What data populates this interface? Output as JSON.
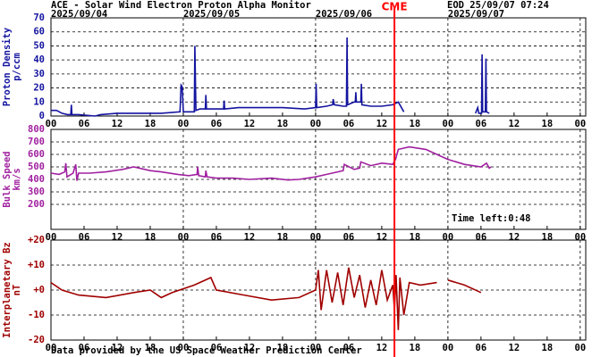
{
  "header": {
    "title": "ACE - Solar Wind Electron Proton Alpha Monitor",
    "eod": "EOD 25/09/07 07:24"
  },
  "footer": "Data provided by the US Space Weather Prediction Center",
  "chart_data": [
    {
      "type": "line",
      "ylabel": [
        "Proton Density",
        "p/ccm"
      ],
      "color": "#1414a0",
      "xlim": [
        0,
        97
      ],
      "ylim": [
        0,
        70
      ],
      "yticks": [
        0,
        10,
        20,
        30,
        40,
        50,
        60,
        70
      ],
      "grid": true,
      "date_ticks": [
        {
          "value": 0,
          "label": "2025/09/04"
        },
        {
          "value": 24,
          "label": "2025/09/05"
        },
        {
          "value": 48,
          "label": "2025/09/06"
        },
        {
          "value": 72,
          "label": "2025/09/07"
        }
      ],
      "annotations": [
        {
          "text": "CME",
          "x": 62.3,
          "color": "#ff0000"
        }
      ],
      "xticks": [
        {
          "value": 0,
          "label": "00"
        },
        {
          "value": 6,
          "label": "06"
        },
        {
          "value": 12,
          "label": "12"
        },
        {
          "value": 18,
          "label": "18"
        },
        {
          "value": 24,
          "label": "00"
        },
        {
          "value": 30,
          "label": "06"
        },
        {
          "value": 36,
          "label": "12"
        },
        {
          "value": 42,
          "label": "18"
        },
        {
          "value": 48,
          "label": "00"
        },
        {
          "value": 54,
          "label": "06"
        },
        {
          "value": 60,
          "label": "12"
        },
        {
          "value": 66,
          "label": "18"
        },
        {
          "value": 72,
          "label": "00"
        },
        {
          "value": 78,
          "label": "06"
        },
        {
          "value": 84,
          "label": "12"
        },
        {
          "value": 90,
          "label": "18"
        },
        {
          "value": 96,
          "label": "00"
        }
      ],
      "x": [
        0,
        1,
        2,
        3,
        3.6,
        3.7,
        3.8,
        5,
        8,
        9,
        12,
        16,
        20,
        23.4,
        23.6,
        23.8,
        24,
        26,
        26.1,
        26.3,
        27,
        28,
        28.1,
        28.2,
        30,
        31.3,
        31.4,
        31.5,
        34,
        38,
        42,
        46,
        48,
        48.1,
        48.2,
        50,
        51.1,
        51.2,
        51.4,
        53,
        53.6,
        53.7,
        53.8,
        55,
        55.2,
        55.3,
        55.4,
        56.2,
        56.3,
        56.4,
        58,
        60,
        62,
        63,
        64,
        66,
        77,
        77.4,
        77.6,
        78.1,
        78.2,
        78.3,
        78.8,
        78.9,
        79,
        79.5
      ],
      "values": [
        4,
        4,
        2,
        1,
        1,
        8,
        1,
        1,
        0,
        1,
        2,
        2,
        2,
        3,
        22,
        21,
        3,
        3,
        50,
        4,
        5,
        5,
        15,
        5,
        5,
        5,
        11,
        5,
        6,
        6,
        6,
        5,
        6,
        23,
        6,
        7,
        8,
        12,
        8,
        7,
        7,
        56,
        8,
        10,
        10,
        17,
        10,
        10,
        23,
        8,
        7,
        7,
        8,
        10,
        3,
        null,
        2,
        6,
        2,
        2,
        44,
        3,
        3,
        41,
        3,
        2
      ]
    },
    {
      "type": "line",
      "ylabel": [
        "Bulk Speed",
        "km/s"
      ],
      "color": "#a020a0",
      "note": "Time left:0:48",
      "xlim": [
        0,
        97
      ],
      "ylim": [
        0,
        800
      ],
      "yticks": [
        200,
        300,
        400,
        500,
        600,
        700,
        800
      ],
      "grid": true,
      "xticks": [
        {
          "value": 0,
          "label": "00"
        },
        {
          "value": 6,
          "label": "06"
        },
        {
          "value": 12,
          "label": "12"
        },
        {
          "value": 18,
          "label": "18"
        },
        {
          "value": 24,
          "label": "00"
        },
        {
          "value": 30,
          "label": "06"
        },
        {
          "value": 36,
          "label": "12"
        },
        {
          "value": 42,
          "label": "18"
        },
        {
          "value": 48,
          "label": "00"
        },
        {
          "value": 54,
          "label": "06"
        },
        {
          "value": 60,
          "label": "12"
        },
        {
          "value": 66,
          "label": "18"
        },
        {
          "value": 72,
          "label": "00"
        },
        {
          "value": 78,
          "label": "06"
        },
        {
          "value": 84,
          "label": "12"
        },
        {
          "value": 90,
          "label": "18"
        },
        {
          "value": 96,
          "label": "00"
        }
      ],
      "x": [
        0,
        1.5,
        2.5,
        2.7,
        2.9,
        4,
        4.5,
        4.7,
        5,
        7,
        10,
        13,
        15,
        18,
        20,
        23,
        25,
        26.5,
        26.6,
        26.8,
        28,
        28.1,
        28.3,
        30,
        33,
        36,
        40,
        43,
        45,
        48,
        50,
        52,
        53,
        53.2,
        55,
        56,
        56.2,
        58,
        60,
        62,
        62.5,
        63,
        65,
        68,
        70,
        72,
        75,
        78,
        79,
        79.5,
        79.8
      ],
      "values": [
        450,
        440,
        460,
        530,
        420,
        450,
        520,
        390,
        450,
        450,
        460,
        480,
        500,
        470,
        460,
        440,
        430,
        440,
        500,
        430,
        420,
        470,
        420,
        410,
        410,
        400,
        410,
        395,
        400,
        420,
        440,
        460,
        470,
        520,
        480,
        490,
        540,
        510,
        530,
        520,
        560,
        640,
        660,
        640,
        600,
        560,
        520,
        500,
        530,
        490,
        500
      ]
    },
    {
      "type": "line",
      "ylabel": [
        "Interplanetary Bz",
        "nT"
      ],
      "color": "#a00000",
      "xlim": [
        0,
        97
      ],
      "ylim": [
        -20,
        20
      ],
      "yticks": [
        {
          "value": 20,
          "label": "+20"
        },
        {
          "value": 10,
          "label": "+10"
        },
        {
          "value": 0,
          "label": "+0"
        },
        {
          "value": -10,
          "label": "-10"
        },
        {
          "value": -20,
          "label": "-20"
        }
      ],
      "grid": true,
      "xticks": [
        {
          "value": 0,
          "label": "00"
        },
        {
          "value": 6,
          "label": "06"
        },
        {
          "value": 12,
          "label": "12"
        },
        {
          "value": 18,
          "label": "18"
        },
        {
          "value": 24,
          "label": "00"
        },
        {
          "value": 30,
          "label": "06"
        },
        {
          "value": 36,
          "label": "12"
        },
        {
          "value": 42,
          "label": "18"
        },
        {
          "value": 48,
          "label": "00"
        },
        {
          "value": 54,
          "label": "06"
        },
        {
          "value": 60,
          "label": "12"
        },
        {
          "value": 66,
          "label": "18"
        },
        {
          "value": 72,
          "label": "00"
        },
        {
          "value": 78,
          "label": "06"
        },
        {
          "value": 84,
          "label": "12"
        },
        {
          "value": 90,
          "label": "18"
        },
        {
          "value": 96,
          "label": "00"
        }
      ],
      "x": [
        0,
        2,
        5,
        10,
        15,
        18,
        20,
        22,
        26,
        29,
        30,
        35,
        40,
        45,
        48,
        48.5,
        49,
        50,
        51,
        52,
        53,
        54,
        55,
        56,
        57,
        58,
        59,
        60,
        61,
        62,
        62.3,
        62.6,
        63,
        63.3,
        64,
        65,
        67,
        70,
        71,
        72,
        75,
        78
      ],
      "values": [
        3,
        0,
        -2,
        -3,
        -1,
        0,
        -3,
        -1,
        2,
        5,
        0,
        -2,
        -4,
        -3,
        0,
        8,
        -8,
        8,
        -5,
        7,
        -6,
        9,
        -3,
        6,
        -7,
        4,
        -6,
        8,
        -4,
        2,
        -8,
        6,
        -16,
        5,
        -10,
        3,
        2,
        3,
        null,
        4,
        2,
        -1
      ]
    }
  ]
}
